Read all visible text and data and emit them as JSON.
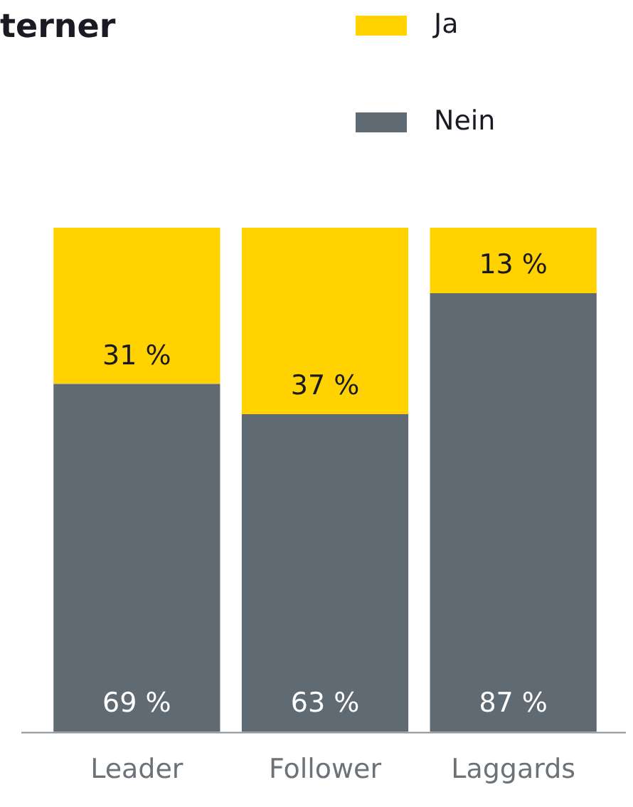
{
  "chart_data": {
    "type": "bar",
    "title": "terner",
    "categories": [
      "Leader",
      "Follower",
      "Laggards"
    ],
    "stacked": true,
    "ylim": [
      0,
      100
    ],
    "tick_labels": "x",
    "grid": false,
    "legend": "top right",
    "series": [
      {
        "name": "Nein",
        "color": "#5f6a72",
        "values": [
          69,
          63,
          87
        ],
        "value_labels": [
          "69 %",
          "63 %",
          "87 %"
        ]
      },
      {
        "name": "Ja",
        "color": "#ffd200",
        "values": [
          31,
          37,
          13
        ],
        "value_labels": [
          "31 %",
          "37 %",
          "13 %"
        ]
      }
    ]
  }
}
